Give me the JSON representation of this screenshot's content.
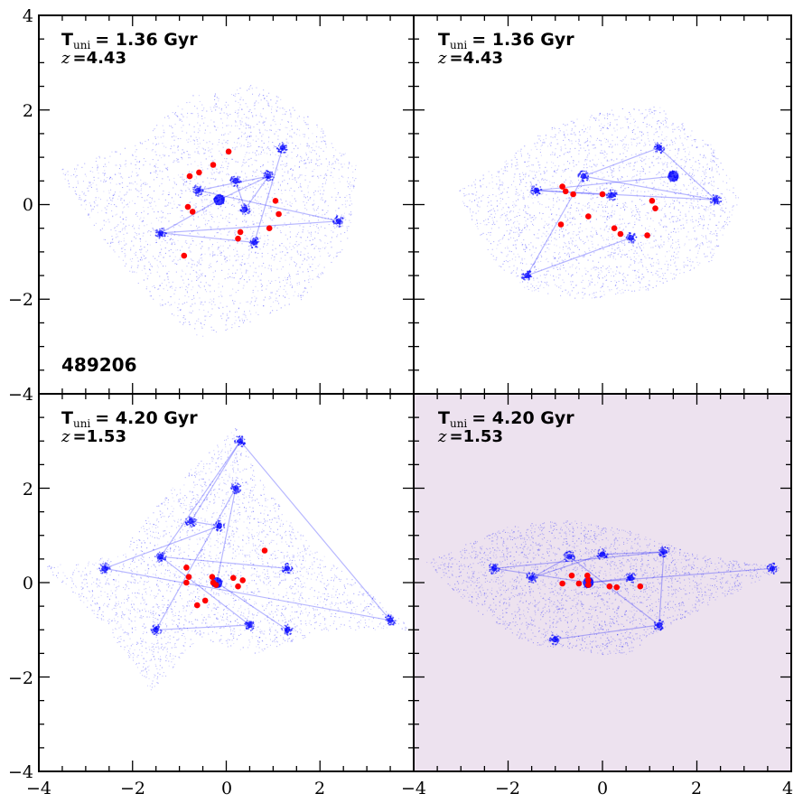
{
  "chart_data": [
    {
      "type": "scatter",
      "title_time_prefix": "T",
      "title_time_sub": "uni",
      "title_time_value": "= 1.36 Gyr",
      "title_z_prefix": "z",
      "title_z_value": "=4.43",
      "id_label": "489206",
      "xlim": [
        -4,
        4
      ],
      "ylim": [
        -4,
        4
      ],
      "background": "#ffffff",
      "red_points": [
        [
          0.05,
          1.12
        ],
        [
          -0.28,
          0.84
        ],
        [
          -0.58,
          0.68
        ],
        [
          -0.78,
          0.6
        ],
        [
          -0.82,
          -0.05
        ],
        [
          -0.72,
          -0.15
        ],
        [
          1.05,
          0.08
        ],
        [
          1.12,
          -0.2
        ],
        [
          0.3,
          -0.58
        ],
        [
          0.25,
          -0.72
        ],
        [
          0.92,
          -0.5
        ],
        [
          -0.9,
          -1.08
        ]
      ],
      "dense_spots": [
        [
          -0.15,
          0.1
        ],
        [
          0.4,
          -0.1
        ],
        [
          1.2,
          1.2
        ],
        [
          0.9,
          0.6
        ],
        [
          -0.6,
          0.3
        ],
        [
          0.6,
          -0.8
        ],
        [
          2.4,
          -0.35
        ],
        [
          -1.4,
          -0.6
        ],
        [
          0.2,
          0.5
        ]
      ]
    },
    {
      "type": "scatter",
      "title_time_prefix": "T",
      "title_time_sub": "uni",
      "title_time_value": "= 1.36 Gyr",
      "title_z_prefix": "z",
      "title_z_value": "=4.43",
      "xlim": [
        -4,
        4
      ],
      "ylim": [
        -4,
        4
      ],
      "background": "#ffffff",
      "red_points": [
        [
          -0.85,
          0.38
        ],
        [
          -0.78,
          0.28
        ],
        [
          -0.62,
          0.22
        ],
        [
          0.0,
          0.22
        ],
        [
          1.05,
          0.08
        ],
        [
          1.12,
          -0.08
        ],
        [
          -0.3,
          -0.25
        ],
        [
          -0.88,
          -0.42
        ],
        [
          0.25,
          -0.5
        ],
        [
          0.38,
          -0.62
        ],
        [
          0.95,
          -0.65
        ]
      ],
      "dense_spots": [
        [
          1.5,
          0.6
        ],
        [
          -0.4,
          0.6
        ],
        [
          0.2,
          0.2
        ],
        [
          -1.4,
          0.3
        ],
        [
          2.4,
          0.1
        ],
        [
          0.6,
          -0.7
        ],
        [
          -1.6,
          -1.5
        ],
        [
          1.2,
          1.2
        ]
      ]
    },
    {
      "type": "scatter",
      "title_time_prefix": "T",
      "title_time_sub": "uni",
      "title_time_value": "= 4.20 Gyr",
      "title_z_prefix": "z",
      "title_z_value": "=1.53",
      "xlim": [
        -4,
        4
      ],
      "ylim": [
        -4,
        4
      ],
      "background": "#ffffff",
      "red_points": [
        [
          -0.85,
          0.32
        ],
        [
          -0.8,
          0.12
        ],
        [
          -0.85,
          0.0
        ],
        [
          -0.3,
          0.12
        ],
        [
          -0.28,
          0.0
        ],
        [
          -0.22,
          -0.05
        ],
        [
          0.15,
          0.1
        ],
        [
          0.25,
          -0.08
        ],
        [
          0.35,
          0.05
        ],
        [
          0.82,
          0.68
        ],
        [
          -0.45,
          -0.38
        ],
        [
          -0.62,
          -0.48
        ]
      ],
      "dense_spots": [
        [
          -0.2,
          0.0
        ],
        [
          -0.75,
          1.3
        ],
        [
          -0.15,
          1.2
        ],
        [
          0.2,
          2.0
        ],
        [
          -1.5,
          -1.0
        ],
        [
          -2.6,
          0.3
        ],
        [
          1.3,
          0.3
        ],
        [
          0.5,
          -0.9
        ],
        [
          3.5,
          -0.8
        ],
        [
          -1.4,
          0.55
        ],
        [
          0.3,
          3.0
        ],
        [
          1.3,
          -1.0
        ]
      ]
    },
    {
      "type": "scatter",
      "title_time_prefix": "T",
      "title_time_sub": "uni",
      "title_time_value": "= 4.20 Gyr",
      "title_z_prefix": "z",
      "title_z_value": "=1.53",
      "xlim": [
        -4,
        4
      ],
      "ylim": [
        -4,
        4
      ],
      "background": "#ede2ef",
      "red_points": [
        [
          -0.85,
          -0.02
        ],
        [
          -0.65,
          0.15
        ],
        [
          -0.5,
          -0.02
        ],
        [
          -0.32,
          0.15
        ],
        [
          -0.3,
          0.05
        ],
        [
          -0.3,
          -0.05
        ],
        [
          0.15,
          -0.08
        ],
        [
          0.3,
          -0.1
        ],
        [
          0.8,
          -0.08
        ]
      ],
      "dense_spots": [
        [
          -0.3,
          0.0
        ],
        [
          -1.5,
          0.1
        ],
        [
          -2.3,
          0.3
        ],
        [
          0.0,
          0.6
        ],
        [
          -1.0,
          -1.2
        ],
        [
          1.3,
          0.65
        ],
        [
          1.2,
          -0.9
        ],
        [
          3.6,
          0.3
        ],
        [
          -0.7,
          0.55
        ],
        [
          0.6,
          0.1
        ]
      ]
    }
  ],
  "axis_tick_labels": [
    "−4",
    "−2",
    "0",
    "2",
    "4"
  ],
  "colors": {
    "points": "#ff0000",
    "particles": "#0000ff",
    "frame": "#000000"
  }
}
